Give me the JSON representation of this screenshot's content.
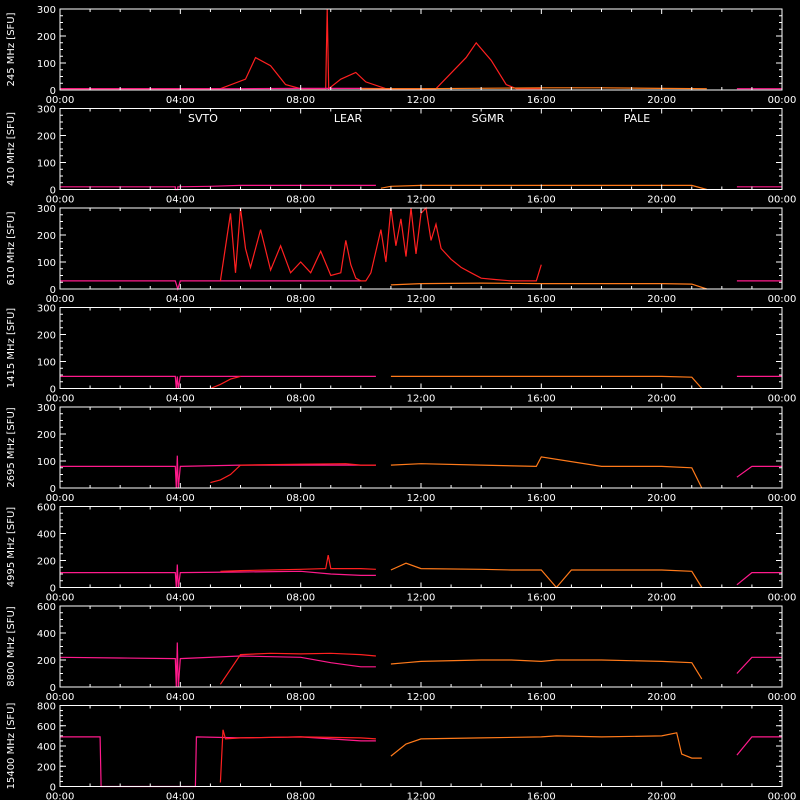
{
  "legend": {
    "items": [
      {
        "name": "SVTO",
        "color": "#ff2020"
      },
      {
        "name": "LEAR",
        "color": "#ff1a8c"
      },
      {
        "name": "SGMR",
        "color": "#ff7a1a"
      },
      {
        "name": "PALE",
        "color": "#ffd200"
      }
    ]
  },
  "colors": {
    "background": "#000000",
    "axes": "#ffffff",
    "SVTO": "#ff2020",
    "LEAR": "#ff1a8c",
    "SGMR": "#ff7a1a",
    "PALE": "#ffd200"
  },
  "chart_data": [
    {
      "type": "line",
      "ylabel": "245 MHz [SFU]",
      "ylim": [
        0,
        300
      ],
      "yticks": [
        "0",
        "100",
        "200",
        "300"
      ],
      "xlim": [
        "00:00",
        "24:00"
      ],
      "xticks": [
        "00:00",
        "04:00",
        "08:00",
        "12:00",
        "16:00",
        "20:00",
        "00:00"
      ],
      "series": [
        {
          "name": "SVTO",
          "x": [
            "00:00",
            "05:20",
            "06:10",
            "06:30",
            "07:00",
            "07:30",
            "08:00",
            "08:50",
            "08:53",
            "08:56",
            "09:20",
            "09:50",
            "10:10",
            "10:50",
            "11:00",
            "12:30",
            "13:30",
            "13:50",
            "14:20",
            "14:50",
            "15:10",
            "16:00"
          ],
          "y": [
            5,
            5,
            40,
            120,
            90,
            20,
            5,
            5,
            300,
            5,
            40,
            65,
            30,
            5,
            5,
            5,
            120,
            175,
            110,
            20,
            5,
            5
          ]
        },
        {
          "name": "LEAR",
          "x": [
            "00:00",
            "04:00",
            "06:00",
            "08:00",
            "10:00",
            "11:00"
          ],
          "y": [
            5,
            5,
            5,
            6,
            6,
            5
          ]
        },
        {
          "name": "SGMR",
          "x": [
            "10:00",
            "12:00",
            "16:00",
            "18:00",
            "20:00",
            "21:30"
          ],
          "y": [
            5,
            5,
            8,
            8,
            6,
            5
          ]
        },
        {
          "name": "LEAR",
          "x": [
            "22:30",
            "24:00"
          ],
          "y": [
            5,
            5
          ]
        }
      ]
    },
    {
      "type": "line",
      "ylabel": "410 MHz [SFU]",
      "ylim": [
        0,
        300
      ],
      "yticks": [
        "0",
        "100",
        "200",
        "300"
      ],
      "xlim": [
        "00:00",
        "24:00"
      ],
      "xticks": [
        "00:00",
        "04:00",
        "08:00",
        "12:00",
        "16:00",
        "20:00",
        "00:00"
      ],
      "series": [
        {
          "name": "LEAR",
          "x": [
            "00:00",
            "03:50",
            "03:50",
            "03:55",
            "03:55",
            "05:00",
            "06:00",
            "08:00",
            "10:00",
            "10:30"
          ],
          "y": [
            10,
            10,
            0,
            0,
            10,
            12,
            15,
            15,
            15,
            15
          ]
        },
        {
          "name": "SGMR",
          "x": [
            "10:40",
            "11:00",
            "12:00",
            "14:00",
            "16:00",
            "16:30",
            "18:00",
            "20:00",
            "21:00",
            "21:30"
          ],
          "y": [
            5,
            12,
            15,
            15,
            15,
            15,
            15,
            15,
            15,
            0
          ]
        },
        {
          "name": "LEAR",
          "x": [
            "22:30",
            "24:00"
          ],
          "y": [
            10,
            10
          ]
        }
      ]
    },
    {
      "type": "line",
      "ylabel": "610 MHz [SFU]",
      "ylim": [
        0,
        300
      ],
      "yticks": [
        "0",
        "100",
        "200",
        "300"
      ],
      "xlim": [
        "00:00",
        "24:00"
      ],
      "xticks": [
        "00:00",
        "04:00",
        "08:00",
        "12:00",
        "16:00",
        "20:00",
        "00:00"
      ],
      "series": [
        {
          "name": "LEAR",
          "x": [
            "00:00",
            "03:50",
            "03:55",
            "04:00",
            "06:00",
            "08:00",
            "09:00",
            "10:00"
          ],
          "y": [
            30,
            30,
            0,
            30,
            30,
            30,
            30,
            30
          ]
        },
        {
          "name": "SVTO",
          "x": [
            "05:20",
            "05:40",
            "05:50",
            "06:00",
            "06:10",
            "06:20",
            "06:40",
            "07:00",
            "07:20",
            "07:40",
            "08:00",
            "08:20",
            "08:40",
            "09:00",
            "09:20",
            "09:30",
            "09:40",
            "09:50",
            "10:00",
            "10:10",
            "10:20",
            "10:40",
            "10:50",
            "11:00",
            "11:10",
            "11:20",
            "11:30",
            "11:40",
            "11:50",
            "12:00",
            "12:10",
            "12:20",
            "12:30",
            "12:40",
            "13:00",
            "13:20",
            "13:40",
            "14:00",
            "14:30",
            "15:00",
            "15:30",
            "15:50",
            "16:00"
          ],
          "y": [
            30,
            280,
            60,
            300,
            150,
            80,
            220,
            70,
            160,
            60,
            100,
            60,
            140,
            50,
            60,
            180,
            90,
            40,
            30,
            30,
            60,
            220,
            100,
            300,
            160,
            260,
            120,
            300,
            130,
            280,
            300,
            180,
            240,
            150,
            110,
            80,
            60,
            40,
            35,
            30,
            30,
            30,
            90
          ]
        },
        {
          "name": "SGMR",
          "x": [
            "11:00",
            "12:00",
            "14:00",
            "16:00",
            "18:00",
            "20:00",
            "21:00",
            "21:30"
          ],
          "y": [
            15,
            20,
            22,
            20,
            20,
            20,
            18,
            0
          ]
        },
        {
          "name": "LEAR",
          "x": [
            "22:30",
            "24:00"
          ],
          "y": [
            30,
            30
          ]
        }
      ]
    },
    {
      "type": "line",
      "ylabel": "1415 MHz [SFU]",
      "ylim": [
        0,
        300
      ],
      "yticks": [
        "0",
        "100",
        "200",
        "300"
      ],
      "xlim": [
        "00:00",
        "24:00"
      ],
      "xticks": [
        "00:00",
        "04:00",
        "08:00",
        "12:00",
        "16:00",
        "20:00",
        "00:00"
      ],
      "series": [
        {
          "name": "LEAR",
          "x": [
            "00:00",
            "03:50",
            "03:52",
            "03:54",
            "03:56",
            "04:00",
            "06:00",
            "08:00",
            "10:00",
            "10:30"
          ],
          "y": [
            45,
            45,
            0,
            45,
            0,
            45,
            45,
            45,
            45,
            45
          ]
        },
        {
          "name": "SVTO",
          "x": [
            "05:00",
            "05:20",
            "05:40",
            "06:00"
          ],
          "y": [
            0,
            15,
            35,
            45
          ]
        },
        {
          "name": "SGMR",
          "x": [
            "11:00",
            "12:00",
            "14:00",
            "16:00",
            "18:00",
            "20:00",
            "21:00",
            "21:20"
          ],
          "y": [
            45,
            45,
            45,
            45,
            45,
            45,
            42,
            0
          ]
        },
        {
          "name": "LEAR",
          "x": [
            "22:30",
            "24:00"
          ],
          "y": [
            45,
            45
          ]
        }
      ]
    },
    {
      "type": "line",
      "ylabel": "2695 MHz [SFU]",
      "ylim": [
        0,
        300
      ],
      "yticks": [
        "0",
        "100",
        "200",
        "300"
      ],
      "xlim": [
        "00:00",
        "24:00"
      ],
      "xticks": [
        "00:00",
        "04:00",
        "08:00",
        "12:00",
        "16:00",
        "20:00",
        "00:00"
      ],
      "series": [
        {
          "name": "LEAR",
          "x": [
            "00:00",
            "03:50",
            "03:52",
            "03:54",
            "03:56",
            "04:00",
            "06:00",
            "08:00",
            "10:00",
            "10:30"
          ],
          "y": [
            80,
            80,
            0,
            120,
            0,
            80,
            85,
            85,
            85,
            85
          ]
        },
        {
          "name": "SVTO",
          "x": [
            "05:00",
            "05:20",
            "05:40",
            "06:00",
            "08:00",
            "09:30",
            "10:00",
            "10:30"
          ],
          "y": [
            20,
            30,
            50,
            85,
            88,
            90,
            85,
            85
          ]
        },
        {
          "name": "SGMR",
          "x": [
            "11:00",
            "12:00",
            "14:00",
            "15:50",
            "16:00",
            "18:00",
            "20:00",
            "21:00",
            "21:20"
          ],
          "y": [
            85,
            90,
            85,
            80,
            115,
            80,
            80,
            75,
            0
          ]
        },
        {
          "name": "LEAR",
          "x": [
            "22:30",
            "23:00",
            "24:00"
          ],
          "y": [
            40,
            80,
            80
          ]
        }
      ]
    },
    {
      "type": "line",
      "ylabel": "4995 MHz [SFU]",
      "ylim": [
        0,
        600
      ],
      "yticks": [
        "0",
        "200",
        "400",
        "600"
      ],
      "xlim": [
        "00:00",
        "24:00"
      ],
      "xticks": [
        "00:00",
        "04:00",
        "08:00",
        "12:00",
        "16:00",
        "20:00",
        "00:00"
      ],
      "series": [
        {
          "name": "LEAR",
          "x": [
            "00:00",
            "03:50",
            "03:52",
            "03:54",
            "03:56",
            "04:00",
            "06:00",
            "08:00",
            "09:00",
            "10:00",
            "10:30"
          ],
          "y": [
            110,
            110,
            0,
            170,
            0,
            110,
            115,
            120,
            100,
            90,
            90
          ]
        },
        {
          "name": "SVTO",
          "x": [
            "05:20",
            "06:00",
            "07:00",
            "08:00",
            "08:50",
            "08:55",
            "09:00",
            "10:00",
            "10:30"
          ],
          "y": [
            120,
            125,
            130,
            135,
            140,
            240,
            140,
            140,
            135
          ]
        },
        {
          "name": "SGMR",
          "x": [
            "11:00",
            "11:30",
            "12:00",
            "14:00",
            "15:00",
            "16:00",
            "16:30",
            "17:00",
            "18:00",
            "20:00",
            "21:00",
            "21:20"
          ],
          "y": [
            130,
            180,
            140,
            135,
            130,
            130,
            0,
            130,
            130,
            130,
            120,
            0
          ]
        },
        {
          "name": "LEAR",
          "x": [
            "22:30",
            "23:00",
            "24:00"
          ],
          "y": [
            20,
            110,
            110
          ]
        }
      ]
    },
    {
      "type": "line",
      "ylabel": "8800 MHz [SFU]",
      "ylim": [
        0,
        600
      ],
      "yticks": [
        "0",
        "200",
        "400",
        "600"
      ],
      "xlim": [
        "00:00",
        "24:00"
      ],
      "xticks": [
        "00:00",
        "04:00",
        "08:00",
        "12:00",
        "16:00",
        "20:00",
        "00:00"
      ],
      "series": [
        {
          "name": "LEAR",
          "x": [
            "00:00",
            "02:00",
            "03:50",
            "03:52",
            "03:54",
            "03:56",
            "04:00",
            "06:00",
            "08:00",
            "09:00",
            "10:00",
            "10:30"
          ],
          "y": [
            220,
            215,
            210,
            0,
            330,
            0,
            210,
            230,
            220,
            180,
            150,
            150
          ]
        },
        {
          "name": "SVTO",
          "x": [
            "05:20",
            "06:00",
            "07:00",
            "08:00",
            "09:00",
            "10:00",
            "10:30"
          ],
          "y": [
            20,
            240,
            250,
            245,
            250,
            240,
            230
          ]
        },
        {
          "name": "SGMR",
          "x": [
            "11:00",
            "11:30",
            "12:00",
            "14:00",
            "15:00",
            "16:00",
            "16:30",
            "18:00",
            "20:00",
            "21:00",
            "21:20"
          ],
          "y": [
            170,
            180,
            190,
            200,
            200,
            190,
            200,
            200,
            190,
            180,
            60
          ]
        },
        {
          "name": "LEAR",
          "x": [
            "22:30",
            "23:00",
            "24:00"
          ],
          "y": [
            100,
            220,
            220
          ]
        }
      ]
    },
    {
      "type": "line",
      "ylabel": "15400 MHz [SFU]",
      "ylim": [
        0,
        800
      ],
      "yticks": [
        "0",
        "200",
        "400",
        "600",
        "800"
      ],
      "xlim": [
        "00:00",
        "24:00"
      ],
      "xticks": [
        "00:00",
        "04:00",
        "08:00",
        "12:00",
        "16:00",
        "20:00",
        "00:00"
      ],
      "series": [
        {
          "name": "LEAR",
          "x": [
            "00:00",
            "01:20",
            "01:22",
            "04:00",
            "04:30",
            "04:32",
            "06:00",
            "08:00",
            "09:00",
            "10:00",
            "10:30"
          ],
          "y": [
            490,
            490,
            0,
            0,
            0,
            490,
            480,
            490,
            470,
            450,
            450
          ]
        },
        {
          "name": "SVTO",
          "x": [
            "05:20",
            "05:25",
            "05:30",
            "06:00",
            "08:00",
            "10:00",
            "10:30"
          ],
          "y": [
            40,
            560,
            470,
            480,
            490,
            480,
            470
          ]
        },
        {
          "name": "SGMR",
          "x": [
            "11:00",
            "11:30",
            "12:00",
            "14:00",
            "16:00",
            "16:30",
            "18:00",
            "20:00",
            "20:30",
            "20:40",
            "21:00",
            "21:20"
          ],
          "y": [
            300,
            420,
            470,
            480,
            490,
            500,
            490,
            500,
            530,
            320,
            280,
            280
          ]
        },
        {
          "name": "LEAR",
          "x": [
            "22:30",
            "23:00",
            "24:00"
          ],
          "y": [
            310,
            490,
            490
          ]
        }
      ]
    }
  ]
}
